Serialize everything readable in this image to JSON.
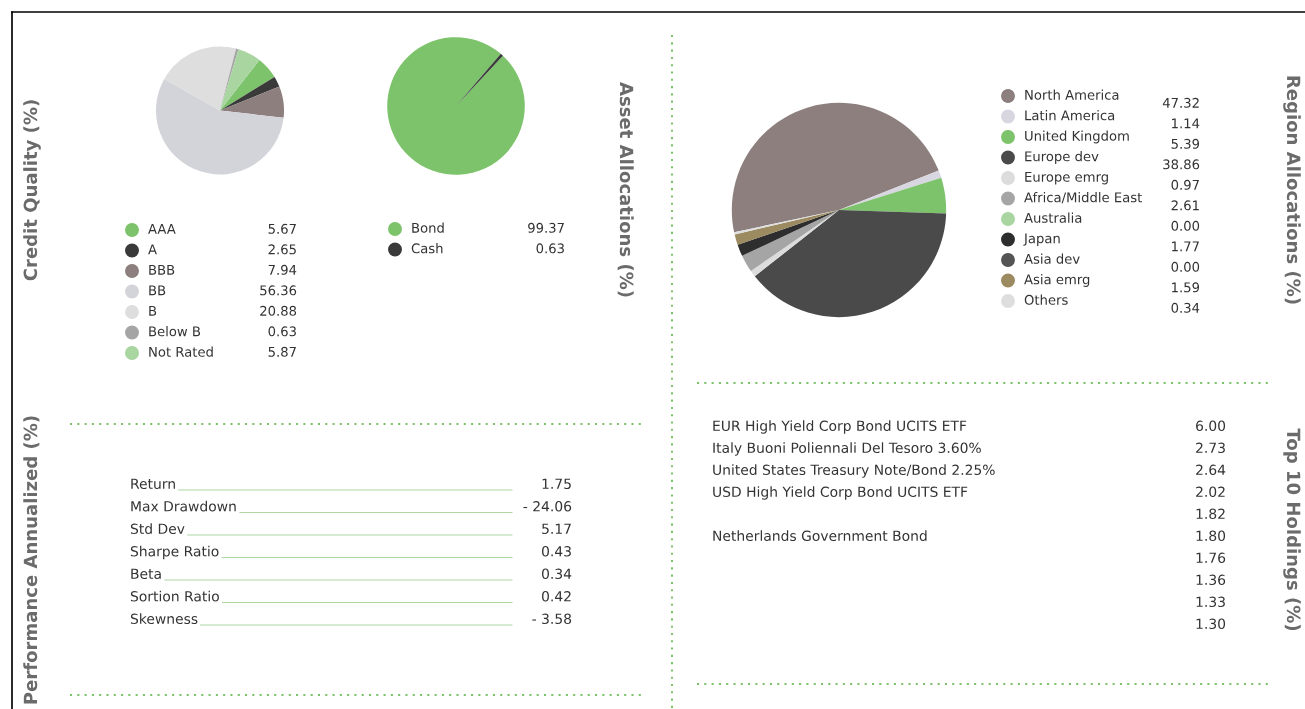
{
  "chart_data": [
    {
      "type": "pie",
      "title": "Credit Quality (%)",
      "legend": "bottom",
      "categories": [
        "AAA",
        "A",
        "BBB",
        "BB",
        "B",
        "Below B",
        "Not Rated"
      ],
      "values": [
        5.67,
        2.65,
        7.94,
        56.36,
        20.88,
        0.63,
        5.87
      ],
      "value_labels": [
        "5.67",
        "2.65",
        "7.94",
        "56.36",
        "20.88",
        "0.63",
        "5.87"
      ],
      "colors": [
        "#7dc36b",
        "#3a3a3a",
        "#8c7f7d",
        "#d3d3da",
        "#dedede",
        "#a5a5a5",
        "#a8d5a0"
      ]
    },
    {
      "type": "pie",
      "title": "Asset Allocations (%)",
      "legend": "bottom",
      "categories": [
        "Bond",
        "Cash"
      ],
      "values": [
        99.37,
        0.63
      ],
      "value_labels": [
        "99.37",
        "0.63"
      ],
      "colors": [
        "#7dc36b",
        "#3a3a3a"
      ]
    },
    {
      "type": "pie",
      "title": "Region Allocations (%)",
      "legend": "right",
      "categories": [
        "North America",
        "Latin America",
        "United Kingdom",
        "Europe dev",
        "Europe emrg",
        "Africa/Middle East",
        "Australia",
        "Japan",
        "Asia dev",
        "Asia emrg",
        "Others"
      ],
      "values": [
        47.32,
        1.14,
        5.39,
        38.86,
        0.97,
        2.61,
        0.0,
        1.77,
        0.0,
        1.59,
        0.34
      ],
      "value_labels": [
        "47.32",
        "1.14",
        "5.39",
        "38.86",
        "0.97",
        "2.61",
        "0.00",
        "1.77",
        "0.00",
        "1.59",
        "0.34"
      ],
      "colors": [
        "#8c7f7d",
        "#d8d6e0",
        "#7dc36b",
        "#4a4a4a",
        "#dcdcdc",
        "#a5a5a5",
        "#a8d5a0",
        "#2e2e2e",
        "#555555",
        "#9c8a60",
        "#dedede"
      ]
    },
    {
      "type": "other",
      "title": "Performance Annualized (%)",
      "categories": [
        "Return",
        "Max Drawdown",
        "Std Dev",
        "Sharpe Ratio",
        "Beta",
        "Sortion Ratio",
        "Skewness"
      ],
      "value_labels": [
        "1.75",
        "- 24.06",
        "5.17",
        "0.43",
        "0.34",
        "0.42",
        "- 3.58"
      ]
    },
    {
      "type": "other",
      "title": "Top 10 Holdings (%)",
      "categories": [
        "EUR High Yield Corp Bond UCITS ETF",
        "Italy Buoni Poliennali Del Tesoro 3.60%",
        "United States Treasury Note/Bond 2.25%",
        "USD High Yield Corp Bond UCITS ETF",
        null,
        "Netherlands Government Bond",
        null,
        null,
        null,
        null
      ],
      "value_labels": [
        "6.00",
        "2.73",
        "2.64",
        "2.02",
        "1.82",
        "1.80",
        "1.76",
        "1.36",
        "1.33",
        "1.30"
      ]
    }
  ]
}
